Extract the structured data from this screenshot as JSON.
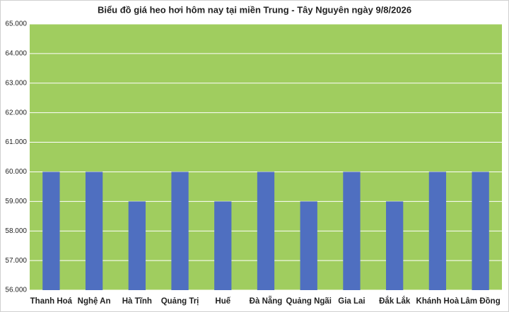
{
  "chart_data": {
    "type": "bar",
    "title": "Biểu đồ giá heo hơi hôm nay tại miền Trung - Tây Nguyên ngày 9/8/2026",
    "categories": [
      "Thanh Hoá",
      "Nghệ An",
      "Hà Tĩnh",
      "Quảng Trị",
      "Huế",
      "Đà Nẵng",
      "Quảng Ngãi",
      "Gia Lai",
      "Đắk Lắk",
      "Khánh Hoà",
      "Lâm Đồng"
    ],
    "values": [
      60000,
      60000,
      59000,
      60000,
      59000,
      60000,
      59000,
      60000,
      59000,
      60000,
      60000
    ],
    "color": "#4f6fc0",
    "plot_background": "#a0cd5f",
    "ylim": [
      56000,
      65000
    ],
    "yticks": [
      {
        "value": 56000,
        "label": "56.000"
      },
      {
        "value": 57000,
        "label": "57.000"
      },
      {
        "value": 58000,
        "label": "58.000"
      },
      {
        "value": 59000,
        "label": "59.000"
      },
      {
        "value": 60000,
        "label": "60.000"
      },
      {
        "value": 61000,
        "label": "61.000"
      },
      {
        "value": 62000,
        "label": "62.000"
      },
      {
        "value": 63000,
        "label": "63.000"
      },
      {
        "value": 64000,
        "label": "64.000"
      },
      {
        "value": 65000,
        "label": "65.000"
      }
    ],
    "grid": true
  }
}
